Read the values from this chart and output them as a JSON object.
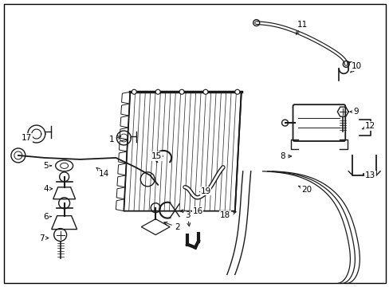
{
  "background_color": "#ffffff",
  "border_color": "#000000",
  "line_color": "#1a1a1a",
  "text_color": "#000000",
  "fig_width": 4.89,
  "fig_height": 3.6,
  "dpi": 100
}
